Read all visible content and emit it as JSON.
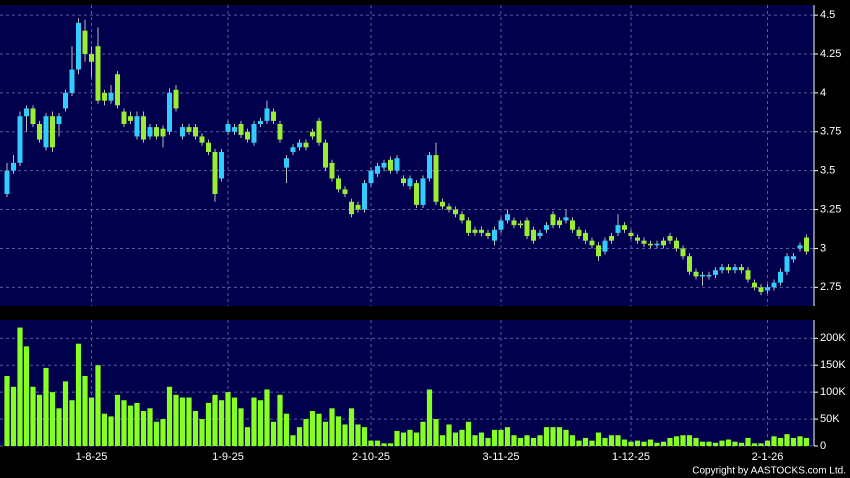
{
  "chart_data": {
    "type": "candlestick",
    "categories": [
      null,
      null,
      null,
      null,
      null,
      null,
      null,
      null,
      null,
      null,
      null,
      null,
      null,
      "1-8-25",
      null,
      null,
      null,
      null,
      null,
      null,
      null,
      null,
      null,
      null,
      null,
      null,
      null,
      null,
      null,
      null,
      null,
      null,
      null,
      null,
      "1-9-25",
      null,
      null,
      null,
      null,
      null,
      null,
      null,
      null,
      null,
      null,
      null,
      null,
      null,
      null,
      null,
      null,
      null,
      null,
      null,
      null,
      null,
      "2-10-25",
      null,
      null,
      null,
      null,
      null,
      null,
      null,
      null,
      null,
      null,
      null,
      null,
      null,
      null,
      null,
      null,
      null,
      null,
      null,
      "3-11-25",
      null,
      null,
      null,
      null,
      null,
      null,
      null,
      null,
      null,
      null,
      null,
      null,
      null,
      null,
      null,
      null,
      null,
      null,
      null,
      "1-12-25",
      null,
      null,
      null,
      null,
      null,
      null,
      null,
      null,
      null,
      null,
      null,
      null,
      null,
      null,
      null,
      null,
      null,
      null,
      null,
      null,
      "2-1-26",
      null,
      null,
      null,
      null,
      null,
      null
    ],
    "open": [
      3.35,
      3.5,
      3.55,
      3.85,
      3.9,
      3.8,
      3.65,
      3.85,
      3.8,
      3.9,
      4.0,
      4.15,
      4.4,
      4.25,
      4.3,
      4.0,
      3.95,
      4.12,
      3.88,
      3.85,
      3.72,
      3.85,
      3.72,
      3.78,
      3.77,
      3.75,
      4.02,
      3.72,
      3.78,
      3.78,
      3.72,
      3.68,
      3.62,
      3.45,
      3.75,
      3.75,
      3.8,
      3.75,
      3.68,
      3.8,
      3.82,
      3.88,
      3.8,
      3.52,
      3.62,
      3.65,
      3.68,
      3.75,
      3.82,
      3.68,
      3.55,
      3.45,
      3.38,
      3.3,
      3.28,
      3.25,
      3.42,
      3.48,
      3.52,
      3.57,
      3.5,
      3.45,
      3.4,
      3.42,
      3.28,
      3.45,
      3.6,
      3.3,
      3.27,
      3.25,
      3.22,
      3.18,
      3.12,
      3.12,
      3.1,
      3.05,
      3.12,
      3.18,
      3.18,
      3.16,
      3.18,
      3.12,
      3.08,
      3.12,
      3.22,
      3.18,
      3.18,
      3.18,
      3.12,
      3.1,
      3.05,
      3.02,
      2.98,
      3.08,
      3.1,
      3.15,
      3.1,
      3.07,
      3.05,
      3.03,
      3.02,
      3.05,
      3.08,
      3.05,
      3.0,
      2.95,
      2.85,
      2.82,
      2.82,
      2.83,
      2.86,
      2.88,
      2.86,
      2.88,
      2.86,
      2.78,
      2.75,
      2.73,
      2.75,
      2.78,
      2.85,
      2.93,
      3.0,
      3.07
    ],
    "high": [
      3.55,
      3.6,
      3.88,
      3.92,
      3.92,
      3.82,
      3.87,
      3.88,
      3.87,
      4.02,
      4.3,
      4.48,
      4.47,
      4.3,
      4.42,
      4.02,
      4.05,
      4.14,
      3.9,
      3.88,
      3.88,
      3.88,
      3.8,
      3.8,
      3.79,
      4.03,
      4.05,
      3.8,
      3.8,
      3.8,
      3.74,
      3.7,
      3.64,
      3.64,
      3.82,
      3.8,
      3.82,
      3.77,
      3.82,
      3.84,
      3.95,
      3.9,
      3.82,
      3.6,
      3.67,
      3.7,
      3.7,
      3.77,
      3.84,
      3.7,
      3.57,
      3.47,
      3.4,
      3.32,
      3.3,
      3.44,
      3.52,
      3.55,
      3.57,
      3.59,
      3.6,
      3.47,
      3.47,
      3.44,
      3.47,
      3.62,
      3.68,
      3.32,
      3.29,
      3.27,
      3.24,
      3.2,
      3.14,
      3.14,
      3.12,
      3.14,
      3.2,
      3.25,
      3.2,
      3.18,
      3.2,
      3.14,
      3.12,
      3.17,
      3.24,
      3.2,
      3.25,
      3.2,
      3.14,
      3.12,
      3.07,
      3.04,
      3.07,
      3.1,
      3.22,
      3.17,
      3.12,
      3.09,
      3.07,
      3.05,
      3.05,
      3.07,
      3.1,
      3.07,
      3.02,
      2.97,
      2.87,
      2.85,
      2.85,
      2.88,
      2.9,
      2.9,
      2.9,
      2.9,
      2.88,
      2.8,
      2.77,
      2.77,
      2.8,
      2.87,
      2.97,
      2.97,
      3.04,
      3.09
    ],
    "low": [
      3.33,
      3.48,
      3.53,
      3.75,
      3.78,
      3.68,
      3.63,
      3.62,
      3.72,
      3.88,
      3.98,
      4.12,
      4.2,
      4.1,
      3.93,
      3.92,
      3.93,
      3.9,
      3.78,
      3.8,
      3.7,
      3.68,
      3.7,
      3.7,
      3.65,
      3.73,
      3.88,
      3.7,
      3.73,
      3.7,
      3.66,
      3.6,
      3.3,
      3.43,
      3.73,
      3.73,
      3.71,
      3.68,
      3.66,
      3.78,
      3.8,
      3.8,
      3.68,
      3.42,
      3.6,
      3.63,
      3.63,
      3.7,
      3.66,
      3.5,
      3.43,
      3.36,
      3.33,
      3.2,
      3.23,
      3.23,
      3.4,
      3.46,
      3.5,
      3.48,
      3.48,
      3.4,
      3.38,
      3.26,
      3.26,
      3.43,
      3.28,
      3.25,
      3.23,
      3.2,
      3.16,
      3.08,
      3.08,
      3.08,
      3.06,
      3.02,
      3.1,
      3.16,
      3.13,
      3.13,
      3.06,
      3.03,
      3.06,
      3.1,
      3.13,
      3.13,
      3.16,
      3.1,
      3.06,
      3.03,
      3.0,
      2.92,
      2.96,
      3.03,
      3.08,
      3.1,
      3.06,
      3.03,
      3.01,
      3.0,
      3.0,
      3.0,
      3.03,
      2.98,
      2.93,
      2.83,
      2.8,
      2.76,
      2.8,
      2.81,
      2.84,
      2.84,
      2.84,
      2.84,
      2.78,
      2.73,
      2.7,
      2.71,
      2.73,
      2.76,
      2.83,
      2.91,
      2.98,
      2.96
    ],
    "close": [
      3.5,
      3.55,
      3.85,
      3.9,
      3.8,
      3.7,
      3.85,
      3.65,
      3.85,
      4.0,
      4.15,
      4.45,
      4.25,
      4.2,
      3.95,
      3.95,
      4.0,
      3.92,
      3.8,
      3.82,
      3.85,
      3.7,
      3.78,
      3.72,
      3.72,
      4.0,
      3.9,
      3.78,
      3.75,
      3.72,
      3.68,
      3.62,
      3.35,
      3.62,
      3.8,
      3.78,
      3.73,
      3.7,
      3.8,
      3.82,
      3.9,
      3.82,
      3.7,
      3.58,
      3.65,
      3.68,
      3.65,
      3.72,
      3.68,
      3.52,
      3.45,
      3.38,
      3.35,
      3.22,
      3.25,
      3.42,
      3.5,
      3.53,
      3.55,
      3.5,
      3.58,
      3.42,
      3.45,
      3.28,
      3.45,
      3.6,
      3.3,
      3.27,
      3.25,
      3.22,
      3.18,
      3.1,
      3.1,
      3.1,
      3.08,
      3.12,
      3.18,
      3.22,
      3.15,
      3.15,
      3.08,
      3.05,
      3.1,
      3.15,
      3.15,
      3.15,
      3.2,
      3.12,
      3.08,
      3.05,
      3.02,
      2.95,
      3.05,
      3.05,
      3.15,
      3.12,
      3.08,
      3.05,
      3.03,
      3.02,
      3.03,
      3.02,
      3.05,
      3.0,
      2.95,
      2.85,
      2.82,
      2.83,
      2.83,
      2.86,
      2.88,
      2.86,
      2.88,
      2.86,
      2.8,
      2.75,
      2.72,
      2.75,
      2.78,
      2.85,
      2.95,
      2.95,
      3.02,
      2.98
    ],
    "up_color": "#33ccff",
    "down_color": "#99ee33",
    "ylim": [
      2.63,
      4.565
    ],
    "yticks": [
      2.75,
      3,
      3.25,
      3.5,
      3.75,
      4,
      4.25,
      4.5
    ],
    "grid": true,
    "volume": {
      "color": "#88ff22",
      "values": [
        130000,
        110000,
        220000,
        185000,
        110000,
        95000,
        145000,
        100000,
        70000,
        120000,
        85000,
        190000,
        130000,
        90000,
        150000,
        60000,
        55000,
        95000,
        85000,
        75000,
        80000,
        65000,
        70000,
        45000,
        50000,
        110000,
        95000,
        90000,
        90000,
        65000,
        50000,
        80000,
        95000,
        85000,
        100000,
        90000,
        70000,
        35000,
        90000,
        85000,
        105000,
        45000,
        95000,
        60000,
        20000,
        35000,
        50000,
        65000,
        60000,
        45000,
        70000,
        55000,
        40000,
        70000,
        40000,
        35000,
        10000,
        10000,
        5000,
        5000,
        28000,
        25000,
        30000,
        25000,
        45000,
        105000,
        50000,
        20000,
        40000,
        25000,
        30000,
        45000,
        20000,
        25000,
        15000,
        30000,
        30000,
        35000,
        20000,
        15000,
        20000,
        15000,
        20000,
        35000,
        35000,
        35000,
        30000,
        20000,
        10000,
        15000,
        10000,
        25000,
        15000,
        20000,
        20000,
        12000,
        8000,
        10000,
        8000,
        12000,
        6000,
        8000,
        15000,
        18000,
        20000,
        20000,
        15000,
        8000,
        8000,
        6000,
        10000,
        12000,
        8000,
        6000,
        15000,
        5000,
        5000,
        10000,
        18000,
        15000,
        22000,
        15000,
        18000,
        15000
      ],
      "ylim": [
        0,
        234000
      ],
      "yticks": [
        0,
        {
          "value": 50000,
          "label": "50K"
        },
        {
          "value": 100000,
          "label": "100K"
        },
        {
          "value": 150000,
          "label": "150K"
        },
        {
          "value": 200000,
          "label": "200K"
        }
      ]
    }
  },
  "footer": "Copyright by AASTOCKS.com Ltd."
}
